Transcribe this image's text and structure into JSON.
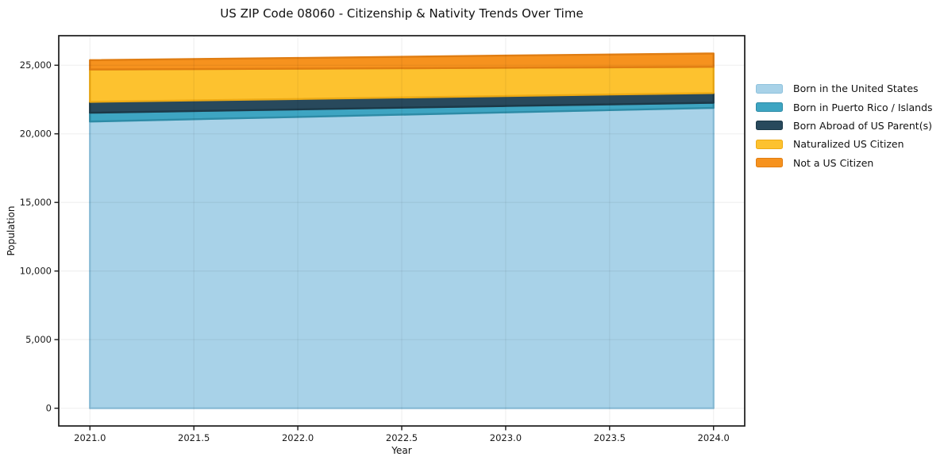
{
  "chart_data": {
    "type": "area",
    "stacked": true,
    "title": "US ZIP Code 08060 - Citizenship & Nativity Trends Over Time",
    "xlabel": "Year",
    "ylabel": "Population",
    "x": [
      2021,
      2022,
      2023,
      2024
    ],
    "series": [
      {
        "name": "Born in the United States",
        "color": "#a8d2e8",
        "edge": "#8ec2dd",
        "values": [
          20900,
          21230,
          21560,
          21890
        ]
      },
      {
        "name": "Born in Puerto Rico / Islands",
        "color": "#3ea5c2",
        "edge": "#2d8ba6",
        "values": [
          640,
          550,
          470,
          380
        ]
      },
      {
        "name": "Born Abroad of US Parent(s)",
        "color": "#28495c",
        "edge": "#1c3948",
        "values": [
          790,
          760,
          730,
          700
        ]
      },
      {
        "name": "Naturalized US Citizen",
        "color": "#fdc22f",
        "edge": "#edaa14",
        "values": [
          2360,
          2210,
          2060,
          1910
        ]
      },
      {
        "name": "Not a US Citizen",
        "color": "#f6921e",
        "edge": "#e07d12",
        "values": [
          680,
          780,
          880,
          980
        ]
      }
    ],
    "xlim": [
      2020.85,
      2024.15
    ],
    "ylim": [
      -1293,
      27153
    ],
    "xticks": [
      2021.0,
      2021.5,
      2022.0,
      2022.5,
      2023.0,
      2023.5,
      2024.0
    ],
    "xtick_labels": [
      "2021.0",
      "2021.5",
      "2022.0",
      "2022.5",
      "2023.0",
      "2023.5",
      "2024.0"
    ],
    "yticks": [
      0,
      5000,
      10000,
      15000,
      20000,
      25000
    ],
    "ytick_labels": [
      "0",
      "5,000",
      "10,000",
      "15,000",
      "20,000",
      "25,000"
    ],
    "grid": true,
    "legend_position": "right",
    "frame_color": "#1a1a1a",
    "grid_color": "rgba(0,0,0,0.055)"
  }
}
